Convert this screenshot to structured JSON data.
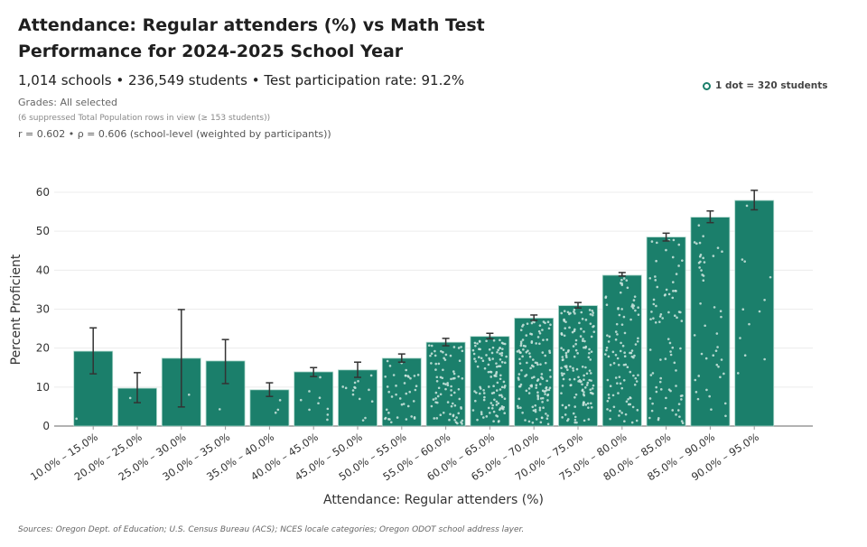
{
  "header": {
    "title": "Attendance: Regular attenders (%) vs Math Test Performance for 2024-2025 School Year",
    "subtitle": "1,014 schools • 236,549 students • Test participation rate: 91.2%",
    "grades": "Grades: All selected",
    "suppressed_note": "(6 suppressed Total Population rows in view (≥ 153 students))",
    "correlation": "r = 0.602 • ρ = 0.606 (school-level (weighted by participants))"
  },
  "legend": {
    "label": "1 dot = 320 students",
    "icon": "ring-dot-icon"
  },
  "footer": {
    "sources": "Sources: Oregon Dept. of Education; U.S. Census Bureau (ACS); NCES locale categories; Oregon ODOT school address layer."
  },
  "chart_data": {
    "type": "bar",
    "xlabel": "Attendance: Regular attenders (%)",
    "ylabel": "Percent Proficient",
    "ylim": [
      0,
      60
    ],
    "yticks": [
      "0",
      "10",
      "20",
      "30",
      "40",
      "50",
      "60"
    ],
    "grid": true,
    "bar_color": "#1b7f6b",
    "dot_color": "#cfe6df",
    "error_color": "#333333",
    "categories": [
      "10.0% – 15.0%",
      "20.0% – 25.0%",
      "25.0% – 30.0%",
      "30.0% – 35.0%",
      "35.0% – 40.0%",
      "40.0% – 45.0%",
      "45.0% – 50.0%",
      "50.0% – 55.0%",
      "55.0% – 60.0%",
      "60.0% – 65.0%",
      "65.0% – 70.0%",
      "70.0% – 75.0%",
      "75.0% – 80.0%",
      "80.0% – 85.0%",
      "85.0% – 90.0%",
      "90.0% – 95.0%"
    ],
    "values": [
      19.2,
      9.7,
      17.4,
      16.7,
      9.3,
      13.9,
      14.4,
      17.4,
      21.5,
      23.0,
      27.7,
      30.9,
      38.7,
      48.5,
      53.6,
      57.9
    ],
    "error_low": [
      13.4,
      6.0,
      4.9,
      10.9,
      7.6,
      12.7,
      12.5,
      16.4,
      20.6,
      22.4,
      27.1,
      30.3,
      38.5,
      47.5,
      52.2,
      55.5
    ],
    "error_high": [
      25.2,
      13.7,
      29.9,
      22.2,
      11.1,
      15.0,
      16.4,
      18.5,
      22.5,
      23.8,
      28.5,
      31.7,
      39.4,
      49.5,
      55.2,
      60.5
    ],
    "dot_counts": [
      1,
      1,
      1,
      1,
      3,
      9,
      14,
      40,
      75,
      110,
      130,
      140,
      100,
      80,
      45,
      12
    ]
  }
}
